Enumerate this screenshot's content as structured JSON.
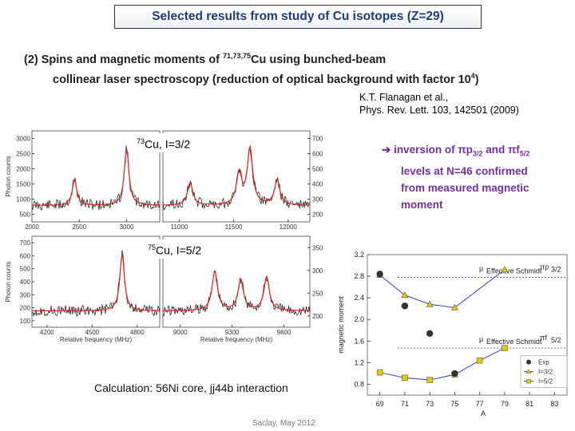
{
  "slide": {
    "title": "Selected results from study of Cu isotopes (Z=29)",
    "subtitle_prefix": "(2)  Spins and magnetic moments of ",
    "subtitle_isotopes_sup": "71,73,75",
    "subtitle_after": "Cu  using bunched-beam",
    "subtitle_line2_a": "collinear laser spectroscopy (reduction of optical background with factor 10",
    "subtitle_line2_sup": "4",
    "subtitle_line2_b": ")",
    "reference_line1": "K.T. Flanagan et al.,",
    "reference_line2": "Phys. Rev. Lett. 103, 142501 (2009)",
    "note_arrow": "➔",
    "note_a": " inversion of ",
    "note_pi1": "π",
    "note_p": "p",
    "note_p_sub": "3/2",
    "note_and": " and ",
    "note_pi2": "π",
    "note_f": "f",
    "note_f_sub": "5/2",
    "note_line2": "levels at N=46 confirmed",
    "note_line3": "from measured magnetic",
    "note_line4": "moment",
    "label_73_sup": "73",
    "label_73_rest": "Cu,  I=3/2",
    "label_75_sup": "75",
    "label_75_rest": "Cu,  I=5/2",
    "calculation": "Calculation: 56Ni core, jj44b interaction",
    "footer": "Saclay, May 2012"
  },
  "chart_data": [
    {
      "type": "line",
      "panel": "top-left",
      "ylabel": "Photon counts",
      "x_ticks": [
        "2000",
        "2500",
        "3000"
      ],
      "y_ticks": [
        "3000",
        "2500",
        "2000",
        "1500",
        "1000",
        "500"
      ],
      "peaks_x": [
        2450,
        3000
      ]
    },
    {
      "type": "line",
      "panel": "top-right",
      "x_ticks": [
        "11000",
        "11500",
        "12000"
      ],
      "y_ticks": [
        "700",
        "600",
        "500",
        "400",
        "300",
        "200"
      ],
      "peaks_x": [
        11100,
        11550,
        11650,
        11900
      ]
    },
    {
      "type": "line",
      "panel": "bottom-left",
      "xlabel": "Relative frequency (MHz)",
      "ylabel": "Photon counts",
      "x_ticks": [
        "4200",
        "4500",
        "4800"
      ],
      "y_ticks": [
        "700",
        "600",
        "500",
        "400",
        "300",
        "200",
        "100"
      ],
      "peaks_x": [
        4700
      ]
    },
    {
      "type": "line",
      "panel": "bottom-right",
      "xlabel": "Relative frequency (MHz)",
      "x_ticks": [
        "9000",
        "9300",
        "9600"
      ],
      "y_ticks": [
        "350",
        "300",
        "250",
        "200"
      ],
      "peaks_x": [
        9200,
        9350,
        9500
      ]
    },
    {
      "type": "scatter",
      "panel": "magnetic-moment",
      "ylabel": "magnetic moment",
      "xlabel": "A",
      "x_ticks": [
        "69",
        "71",
        "73",
        "75",
        "77",
        "79",
        "81",
        "83"
      ],
      "y_ticks": [
        "3.2",
        "2.8",
        "2.4",
        "2.0",
        "1.6",
        "1.2",
        "0.8"
      ],
      "xlim": [
        68,
        84
      ],
      "ylim": [
        0.6,
        3.2
      ],
      "schmidt_p32": {
        "label_mu": "μ",
        "label_sub": "Effective Schmidt",
        "label_state": "πp",
        "label_state_sub": "3/2",
        "value": 2.78
      },
      "schmidt_f52": {
        "label_mu": "μ",
        "label_sub": "Effective Schmidt",
        "label_state": "πf",
        "label_state_sub": "5/2",
        "value": 1.47
      },
      "legend": [
        "Exp",
        "I=3/2",
        "I=5/2"
      ],
      "series": [
        {
          "name": "Exp",
          "x": [
            69,
            71,
            73,
            75
          ],
          "y": [
            2.84,
            2.25,
            1.74,
            1.0
          ]
        },
        {
          "name": "I=3/2",
          "x": [
            69,
            71,
            73,
            75,
            79
          ],
          "y": [
            2.82,
            2.45,
            2.28,
            2.22,
            2.92
          ]
        },
        {
          "name": "I=5/2",
          "x": [
            69,
            71,
            73,
            75,
            77,
            79
          ],
          "y": [
            1.02,
            0.92,
            0.88,
            0.98,
            1.24,
            1.47
          ]
        }
      ],
      "colors": {
        "exp": "#333333",
        "i32": "#3344bb",
        "i52": "#ddcc00"
      }
    }
  ]
}
